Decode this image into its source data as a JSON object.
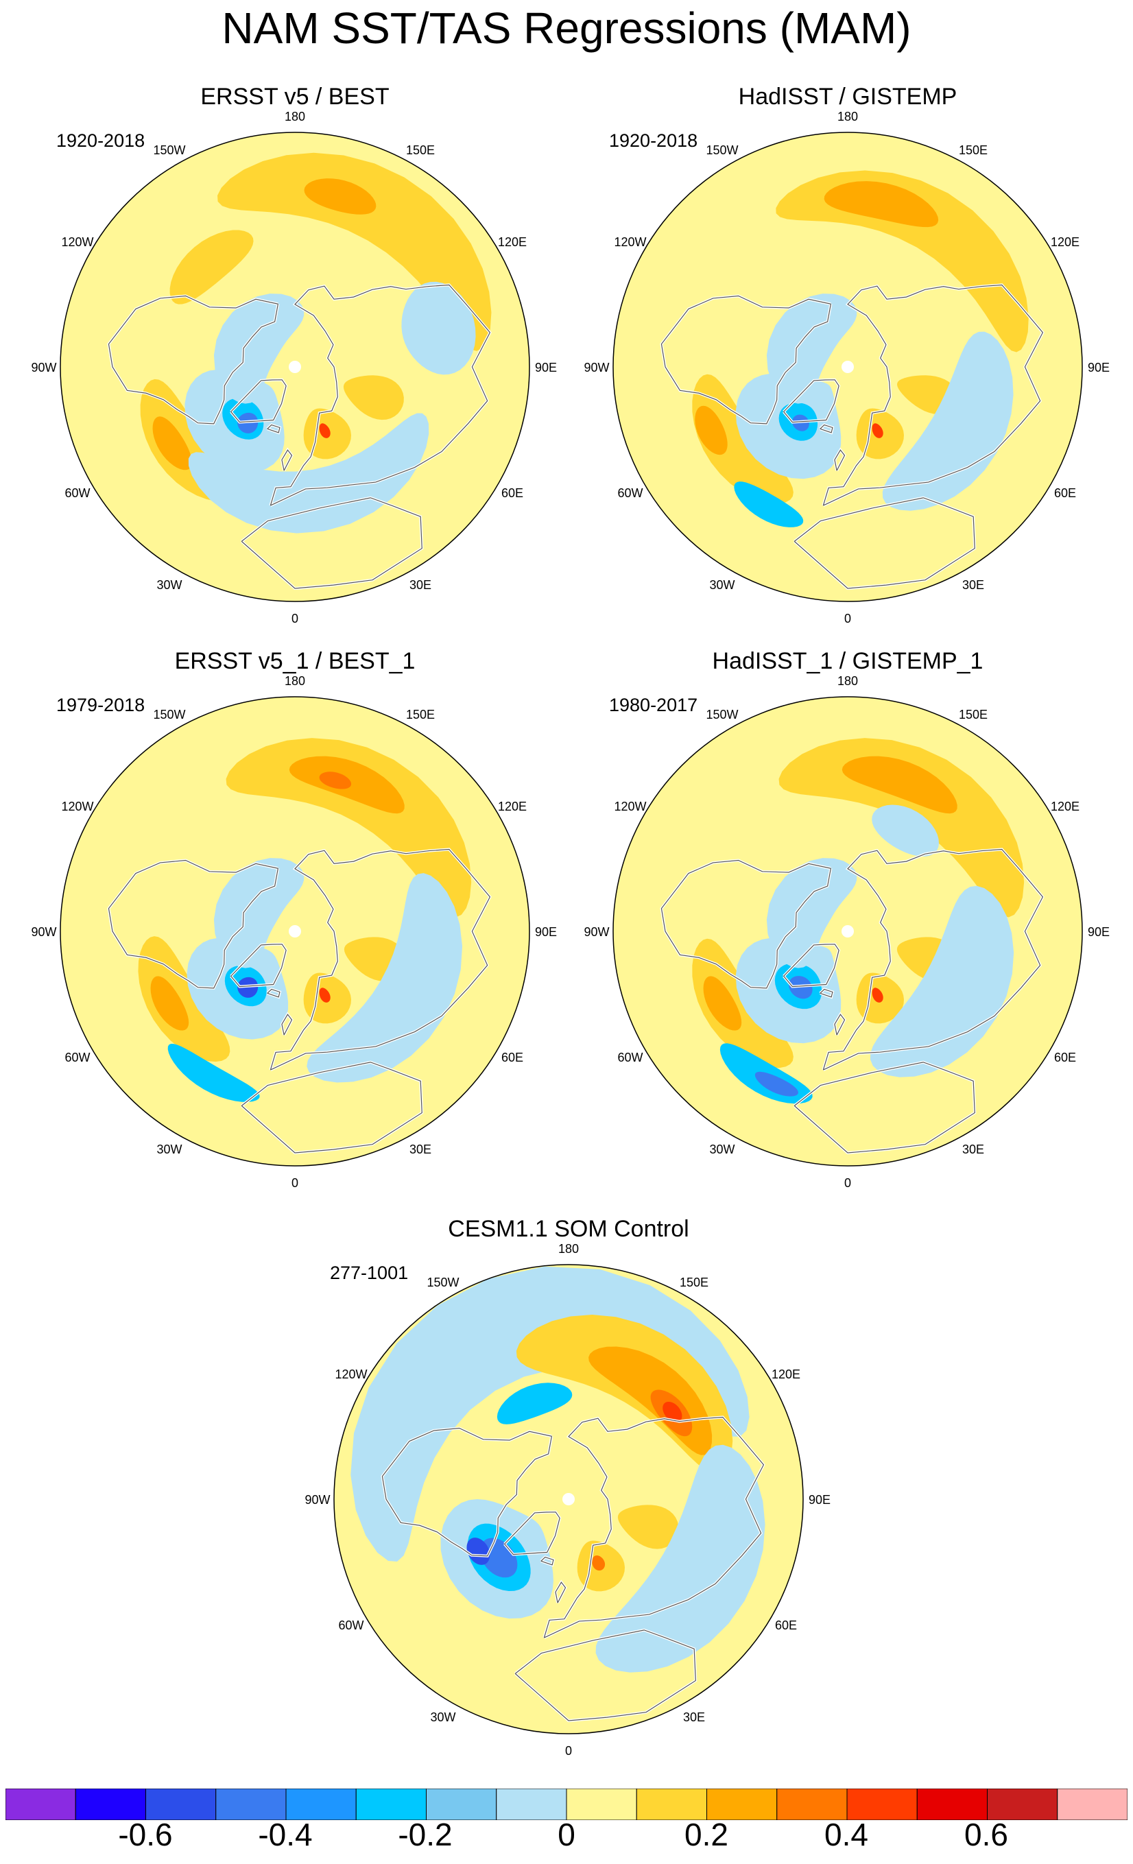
{
  "title": "NAM SST/TAS Regressions (MAM)",
  "lon_labels": [
    "180",
    "150E",
    "120E",
    "90E",
    "60E",
    "30E",
    "0",
    "30W",
    "60W",
    "90W",
    "120W",
    "150W"
  ],
  "panels": [
    {
      "title": "ERSST v5 / BEST",
      "years": "1920-2018",
      "background": "#fff796",
      "patches": [
        {
          "lon": 150,
          "lat": 20,
          "rlon": 55,
          "rlat": 14,
          "level": 0.2
        },
        {
          "lon": 165,
          "lat": 22,
          "rlon": 12,
          "rlat": 6,
          "level": 0.3
        },
        {
          "lon": -140,
          "lat": 38,
          "rlon": 22,
          "rlat": 8,
          "level": 0.2
        },
        {
          "lon": -55,
          "lat": 36,
          "rlon": 30,
          "rlat": 10,
          "level": 0.2
        },
        {
          "lon": -58,
          "lat": 34,
          "rlon": 12,
          "rlat": 5,
          "level": 0.3
        },
        {
          "lon": -48,
          "lat": 60,
          "rlon": 40,
          "rlat": 18,
          "level": -0.1
        },
        {
          "lon": -45,
          "lat": 62,
          "rlon": 18,
          "rlat": 7,
          "level": -0.2
        },
        {
          "lon": -40,
          "lat": 62,
          "rlon": 8,
          "rlat": 4,
          "level": -0.3
        },
        {
          "lon": 25,
          "lat": 62,
          "rlon": 18,
          "rlat": 10,
          "level": 0.2
        },
        {
          "lon": 25,
          "lat": 63,
          "rlon": 4,
          "rlat": 3,
          "level": 0.5
        },
        {
          "lon": 70,
          "lat": 58,
          "rlon": 14,
          "rlat": 12,
          "level": 0.2
        },
        {
          "lon": 10,
          "lat": 38,
          "rlon": 60,
          "rlat": 12,
          "level": -0.1
        },
        {
          "lon": -120,
          "lat": 70,
          "rlon": 70,
          "rlat": 12,
          "level": -0.1
        },
        {
          "lon": 105,
          "lat": 33,
          "rlon": 18,
          "rlat": 14,
          "level": -0.1
        }
      ]
    },
    {
      "title": "HadISST / GISTEMP",
      "years": "1920-2018",
      "background": "#fff796",
      "patches": [
        {
          "lon": 150,
          "lat": 25,
          "rlon": 55,
          "rlat": 12,
          "level": 0.2
        },
        {
          "lon": 168,
          "lat": 25,
          "rlon": 20,
          "rlat": 7,
          "level": 0.3
        },
        {
          "lon": -55,
          "lat": 36,
          "rlon": 32,
          "rlat": 10,
          "level": 0.2
        },
        {
          "lon": -65,
          "lat": 32,
          "rlon": 10,
          "rlat": 5,
          "level": 0.3
        },
        {
          "lon": -45,
          "lat": 60,
          "rlon": 40,
          "rlat": 20,
          "level": -0.1
        },
        {
          "lon": -42,
          "lat": 62,
          "rlon": 16,
          "rlat": 7,
          "level": -0.2
        },
        {
          "lon": -40,
          "lat": 62,
          "rlon": 7,
          "rlat": 3,
          "level": -0.3
        },
        {
          "lon": 25,
          "lat": 62,
          "rlon": 18,
          "rlat": 10,
          "level": 0.2
        },
        {
          "lon": 25,
          "lat": 63,
          "rlon": 4,
          "rlat": 3,
          "level": 0.5
        },
        {
          "lon": 72,
          "lat": 58,
          "rlon": 12,
          "rlat": 12,
          "level": 0.2
        },
        {
          "lon": 60,
          "lat": 38,
          "rlon": 45,
          "rlat": 14,
          "level": -0.1
        },
        {
          "lon": -120,
          "lat": 70,
          "rlon": 70,
          "rlat": 12,
          "level": -0.1
        },
        {
          "lon": -30,
          "lat": 28,
          "rlon": 14,
          "rlat": 5,
          "level": -0.2
        }
      ]
    },
    {
      "title": "ERSST v5_1 / BEST_1",
      "years": "1979-2018",
      "background": "#fff796",
      "patches": [
        {
          "lon": 150,
          "lat": 28,
          "rlon": 55,
          "rlat": 14,
          "level": 0.2
        },
        {
          "lon": 160,
          "lat": 28,
          "rlon": 22,
          "rlat": 7,
          "level": 0.3
        },
        {
          "lon": 165,
          "lat": 30,
          "rlon": 6,
          "rlat": 3,
          "level": 0.4
        },
        {
          "lon": -58,
          "lat": 36,
          "rlon": 30,
          "rlat": 10,
          "level": 0.2
        },
        {
          "lon": -60,
          "lat": 34,
          "rlon": 12,
          "rlat": 5,
          "level": 0.3
        },
        {
          "lon": -45,
          "lat": 60,
          "rlon": 40,
          "rlat": 18,
          "level": -0.1
        },
        {
          "lon": -42,
          "lat": 62,
          "rlon": 18,
          "rlat": 7,
          "level": -0.2
        },
        {
          "lon": -40,
          "lat": 62,
          "rlon": 8,
          "rlat": 4,
          "level": -0.4
        },
        {
          "lon": 25,
          "lat": 62,
          "rlon": 18,
          "rlat": 10,
          "level": 0.2
        },
        {
          "lon": 25,
          "lat": 63,
          "rlon": 4,
          "rlat": 3,
          "level": 0.5
        },
        {
          "lon": 72,
          "lat": 58,
          "rlon": 14,
          "rlat": 12,
          "level": 0.2
        },
        {
          "lon": 60,
          "lat": 38,
          "rlon": 55,
          "rlat": 14,
          "level": -0.1
        },
        {
          "lon": -120,
          "lat": 70,
          "rlon": 70,
          "rlat": 12,
          "level": -0.1
        },
        {
          "lon": -30,
          "lat": 25,
          "rlon": 18,
          "rlat": 5,
          "level": -0.2
        }
      ]
    },
    {
      "title": "HadISST_1 / GISTEMP_1",
      "years": "1980-2017",
      "background": "#fff796",
      "patches": [
        {
          "lon": 150,
          "lat": 28,
          "rlon": 55,
          "rlat": 14,
          "level": 0.2
        },
        {
          "lon": 160,
          "lat": 28,
          "rlon": 22,
          "rlat": 7,
          "level": 0.3
        },
        {
          "lon": -55,
          "lat": 36,
          "rlon": 32,
          "rlat": 10,
          "level": 0.2
        },
        {
          "lon": -60,
          "lat": 34,
          "rlon": 12,
          "rlat": 5,
          "level": 0.3
        },
        {
          "lon": -45,
          "lat": 60,
          "rlon": 40,
          "rlat": 20,
          "level": -0.1
        },
        {
          "lon": -42,
          "lat": 62,
          "rlon": 20,
          "rlat": 8,
          "level": -0.2
        },
        {
          "lon": -40,
          "lat": 62,
          "rlon": 10,
          "rlat": 4,
          "level": -0.3
        },
        {
          "lon": 25,
          "lat": 62,
          "rlon": 18,
          "rlat": 10,
          "level": 0.2
        },
        {
          "lon": 25,
          "lat": 63,
          "rlon": 4,
          "rlat": 3,
          "level": 0.5
        },
        {
          "lon": 72,
          "lat": 58,
          "rlon": 14,
          "rlat": 12,
          "level": 0.2
        },
        {
          "lon": 60,
          "lat": 40,
          "rlon": 50,
          "rlat": 16,
          "level": -0.1
        },
        {
          "lon": -120,
          "lat": 70,
          "rlon": 70,
          "rlat": 12,
          "level": -0.1
        },
        {
          "lon": -30,
          "lat": 25,
          "rlon": 18,
          "rlat": 6,
          "level": -0.2
        },
        {
          "lon": -25,
          "lat": 25,
          "rlon": 8,
          "rlat": 3,
          "level": -0.3
        },
        {
          "lon": 150,
          "lat": 45,
          "rlon": 18,
          "rlat": 8,
          "level": -0.1
        }
      ]
    },
    {
      "title": "CESM1.1 SOM Control",
      "years": "277-1001",
      "background": "#fff796",
      "patches": [
        {
          "lon": -160,
          "lat": 20,
          "rlon": 90,
          "rlat": 20,
          "level": -0.1
        },
        {
          "lon": 150,
          "lat": 32,
          "rlon": 50,
          "rlat": 15,
          "level": 0.2
        },
        {
          "lon": 140,
          "lat": 35,
          "rlon": 32,
          "rlat": 9,
          "level": 0.3
        },
        {
          "lon": 130,
          "lat": 38,
          "rlon": 12,
          "rlat": 5,
          "level": 0.4
        },
        {
          "lon": 130,
          "lat": 38,
          "rlon": 5,
          "rlat": 3,
          "level": 0.5
        },
        {
          "lon": -160,
          "lat": 50,
          "rlon": 22,
          "rlat": 6,
          "level": -0.2
        },
        {
          "lon": -50,
          "lat": 55,
          "rlon": 40,
          "rlat": 20,
          "level": -0.1
        },
        {
          "lon": -50,
          "lat": 55,
          "rlon": 24,
          "rlat": 10,
          "level": -0.2
        },
        {
          "lon": -50,
          "lat": 55,
          "rlon": 14,
          "rlat": 6,
          "level": -0.3
        },
        {
          "lon": -60,
          "lat": 50,
          "rlon": 8,
          "rlat": 4,
          "level": -0.4
        },
        {
          "lon": 25,
          "lat": 62,
          "rlon": 18,
          "rlat": 10,
          "level": 0.2
        },
        {
          "lon": 25,
          "lat": 63,
          "rlon": 5,
          "rlat": 3,
          "level": 0.4
        },
        {
          "lon": 72,
          "lat": 58,
          "rlon": 14,
          "rlat": 12,
          "level": 0.2
        },
        {
          "lon": 60,
          "lat": 30,
          "rlon": 50,
          "rlat": 18,
          "level": -0.1
        }
      ]
    }
  ],
  "colorbar": {
    "colors": [
      "#8a2be2",
      "#1e00ff",
      "#2c4eea",
      "#3a7bf0",
      "#1e96ff",
      "#00c8ff",
      "#78c8f0",
      "#b4e1f5",
      "#fff796",
      "#ffd633",
      "#ffaa00",
      "#ff7800",
      "#ff3c00",
      "#e60000",
      "#c81e1e",
      "#ffb4b4"
    ],
    "ticks": [
      -0.6,
      -0.4,
      -0.2,
      0,
      0.2,
      0.4,
      0.6
    ],
    "tick_labels": [
      "-0.6",
      "-0.4",
      "-0.2",
      "0",
      "0.2",
      "0.4",
      "0.6"
    ],
    "level_colors": {
      "-0.4": "#2c4eea",
      "-0.3": "#3a7bf0",
      "-0.2": "#00c8ff",
      "-0.1": "#b4e1f5",
      "0.2": "#ffd633",
      "0.3": "#ffaa00",
      "0.4": "#ff7800",
      "0.5": "#ff3c00"
    }
  }
}
